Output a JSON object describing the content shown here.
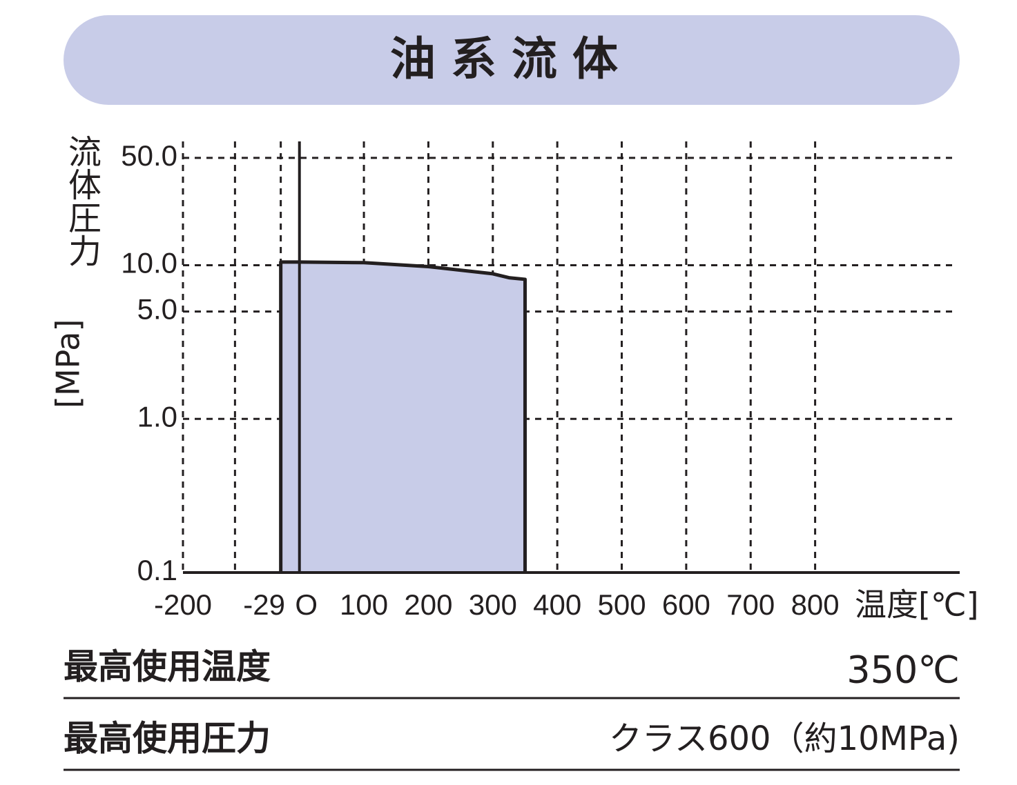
{
  "chart_data": {
    "type": "area",
    "title": "油系流体",
    "x_label": "温度[℃]",
    "y_label_text": "流体圧力",
    "y_label_unit": "[MPa]",
    "x": [
      -29,
      0,
      100,
      200,
      300,
      325,
      350
    ],
    "values": [
      10.5,
      10.5,
      10.4,
      9.8,
      8.8,
      8.3,
      8.1
    ],
    "color": "#c8cce8",
    "xlim": [
      -200,
      1020
    ],
    "xticks": [
      -200,
      {
        "value": -100,
        "label": null
      },
      -29,
      {
        "value": 0,
        "label": "O"
      },
      100,
      200,
      300,
      400,
      500,
      600,
      700,
      800
    ],
    "ylim": [
      0.1,
      64
    ],
    "yticks": [
      0.1,
      {
        "value": 1,
        "label": "1.0"
      },
      {
        "value": 5,
        "label": "5.0"
      },
      {
        "value": 10,
        "label": "10.0"
      },
      {
        "value": 50,
        "label": "50.0"
      }
    ],
    "log_y": true,
    "grid": true
  },
  "specs": [
    {
      "label": "最高使用温度",
      "value": "350℃"
    },
    {
      "label": "最高使用圧力",
      "value": "クラス600（約10MPa)"
    }
  ]
}
